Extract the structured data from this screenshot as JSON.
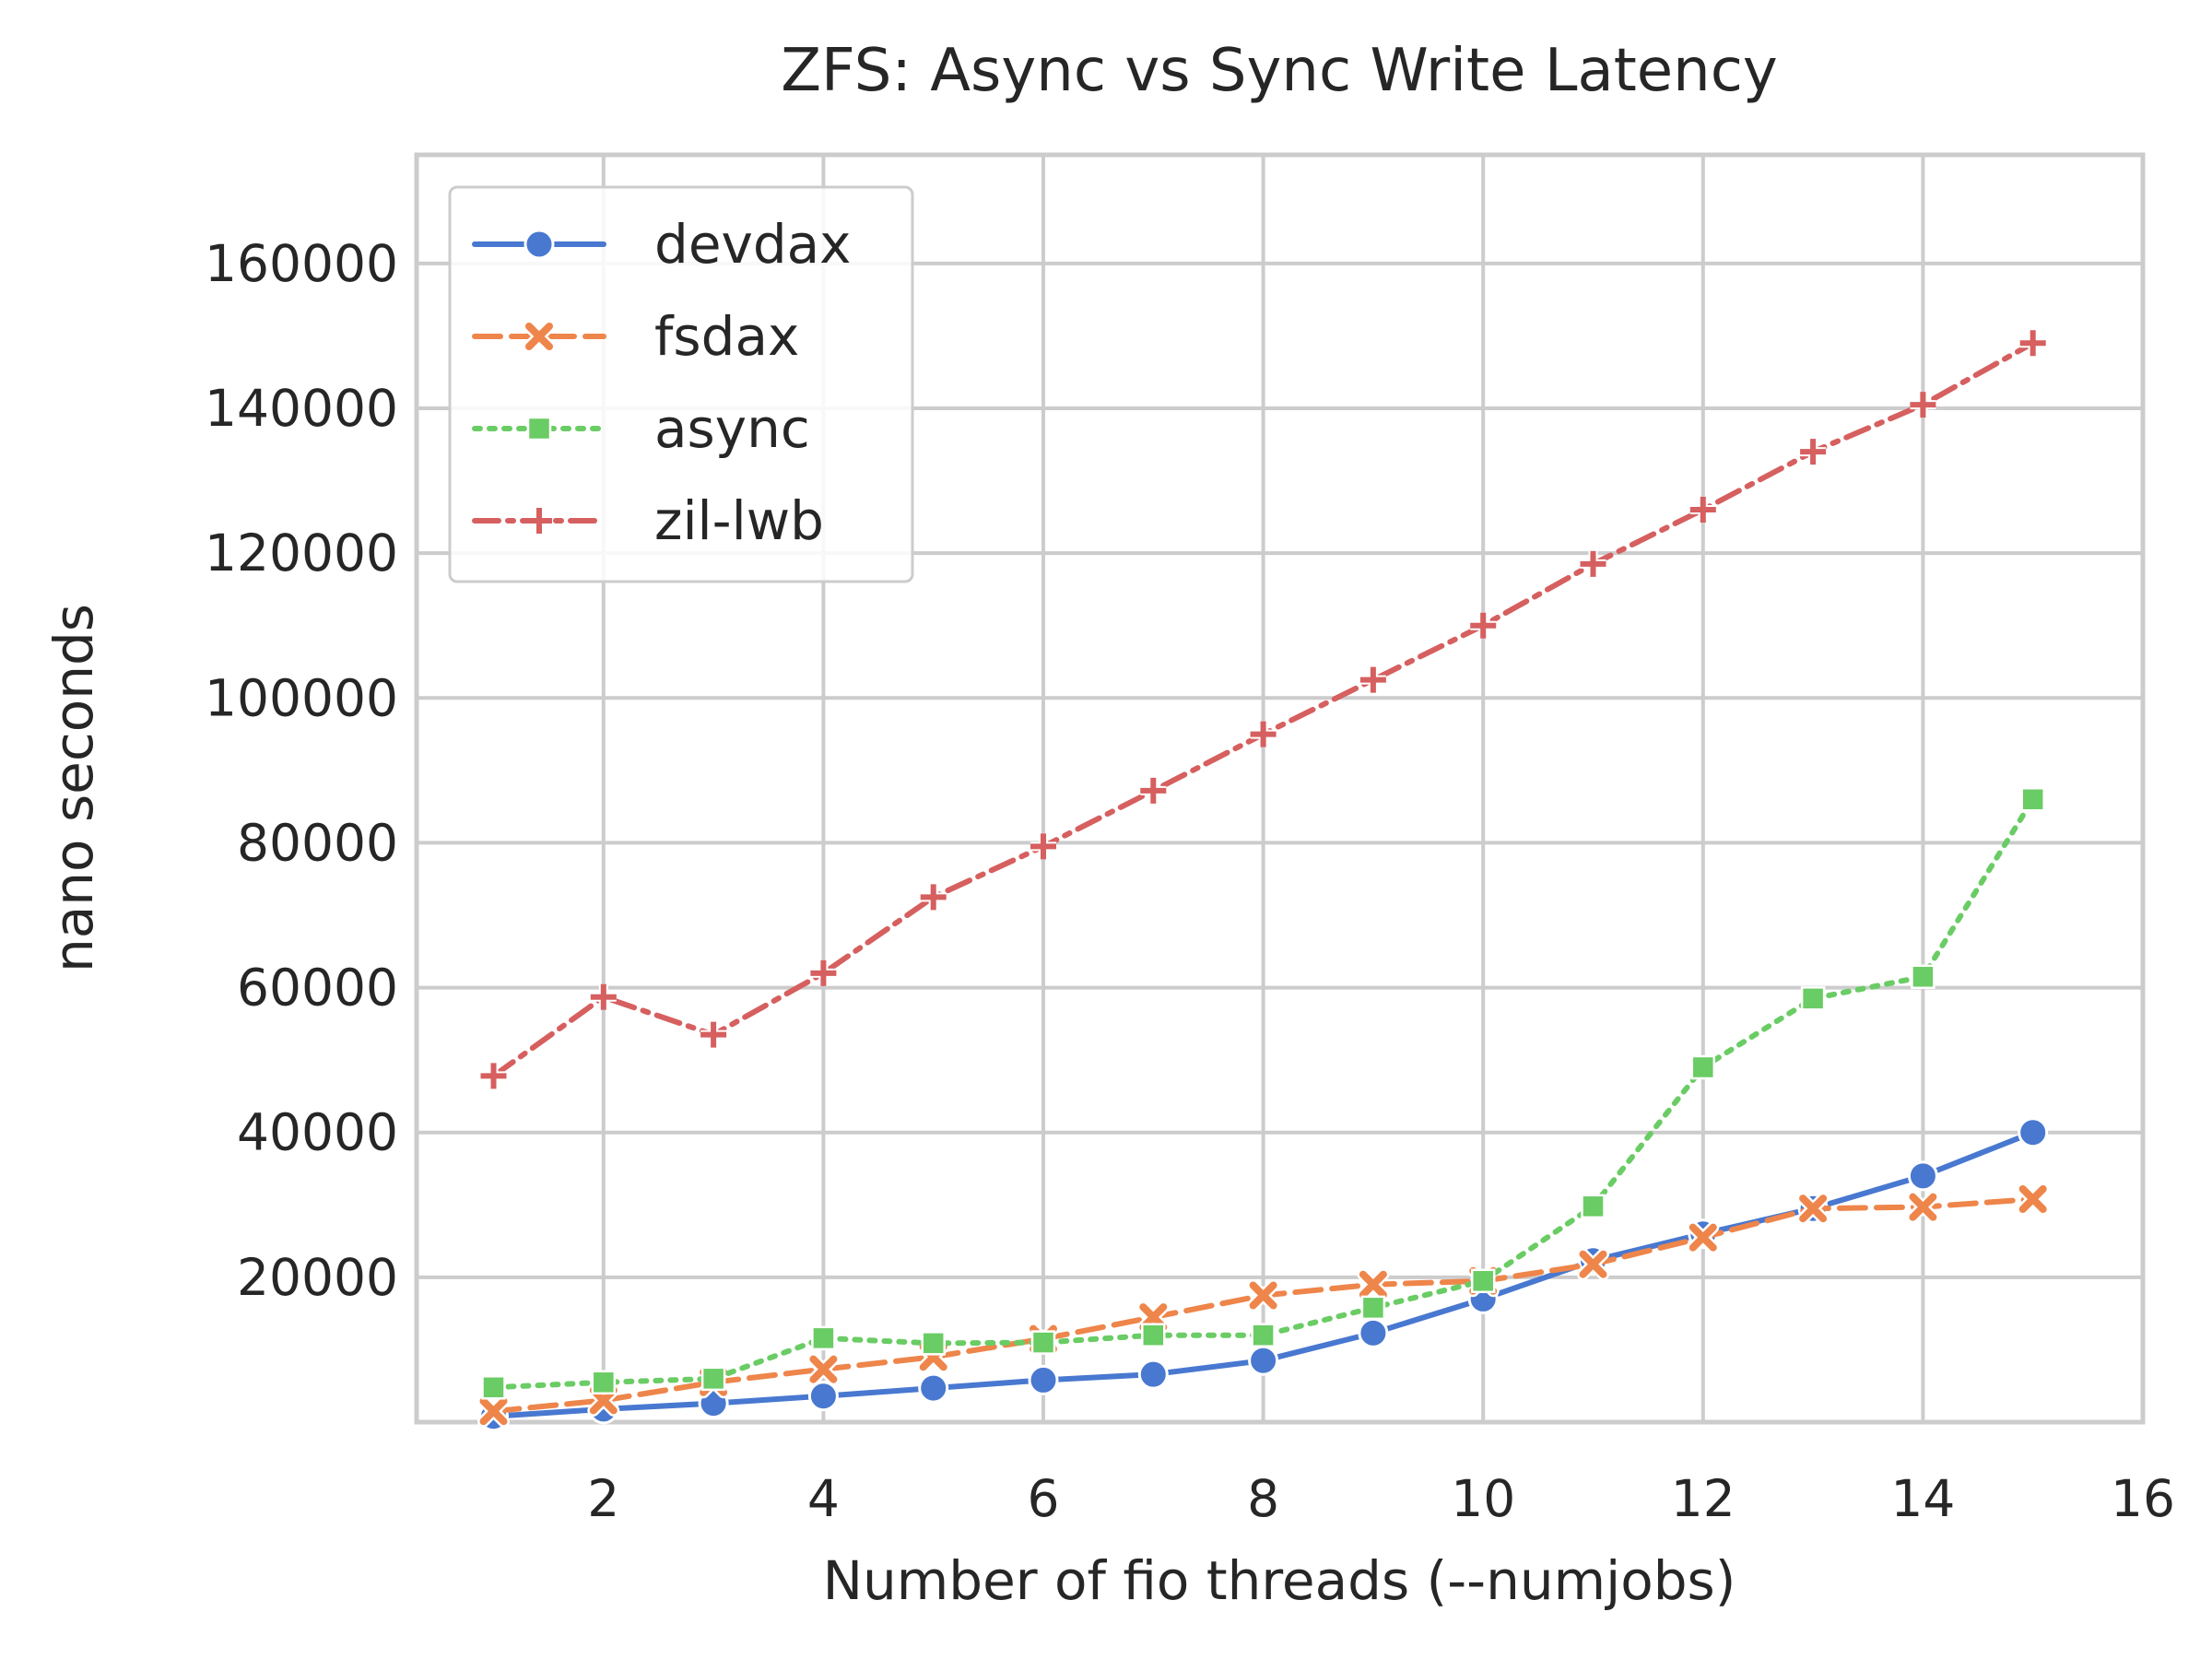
{
  "chart_data": {
    "type": "line",
    "title": "ZFS: Async vs Sync Write Latency",
    "xlabel": "Number of fio threads (--numjobs)",
    "ylabel": "nano seconds",
    "xlim": [
      0.3,
      16
    ],
    "ylim": [
      0,
      175000
    ],
    "x_ticks": [
      2,
      4,
      6,
      8,
      10,
      12,
      14,
      16
    ],
    "y_ticks": [
      20000,
      40000,
      60000,
      80000,
      100000,
      120000,
      140000,
      160000
    ],
    "x_tick_labels": [
      "2",
      "4",
      "6",
      "8",
      "10",
      "12",
      "14",
      "16"
    ],
    "y_tick_labels": [
      "20000",
      "40000",
      "60000",
      "80000",
      "100000",
      "120000",
      "140000",
      "160000"
    ],
    "grid": true,
    "legend_position": "top-left",
    "x": [
      1,
      2,
      3,
      4,
      5,
      6,
      7,
      8,
      9,
      10,
      11,
      12,
      13,
      14,
      15
    ],
    "series": [
      {
        "name": "devdax",
        "color": "#4878d0",
        "marker": "circle",
        "linestyle": "solid",
        "values": [
          800,
          1800,
          2600,
          3600,
          4700,
          5800,
          6600,
          8500,
          12300,
          17000,
          22300,
          26000,
          29500,
          34000,
          40000
        ]
      },
      {
        "name": "fsdax",
        "color": "#ee854a",
        "marker": "x",
        "linestyle": "dashed",
        "values": [
          1500,
          3000,
          5500,
          7300,
          9000,
          11500,
          14500,
          17500,
          19000,
          19500,
          21800,
          25500,
          29500,
          29700,
          30800
        ]
      },
      {
        "name": "async",
        "color": "#6acc64",
        "marker": "square",
        "linestyle": "dotted",
        "values": [
          4800,
          5500,
          6000,
          11600,
          10900,
          11000,
          12000,
          12000,
          15800,
          19500,
          29800,
          49000,
          58500,
          61500,
          86000
        ]
      },
      {
        "name": "zil-lwb",
        "color": "#d65f5f",
        "marker": "plus",
        "linestyle": "dashdot",
        "values": [
          47800,
          58700,
          53500,
          62000,
          72500,
          79500,
          87200,
          95000,
          102500,
          110000,
          118500,
          126000,
          134000,
          140500,
          149000
        ]
      }
    ]
  }
}
